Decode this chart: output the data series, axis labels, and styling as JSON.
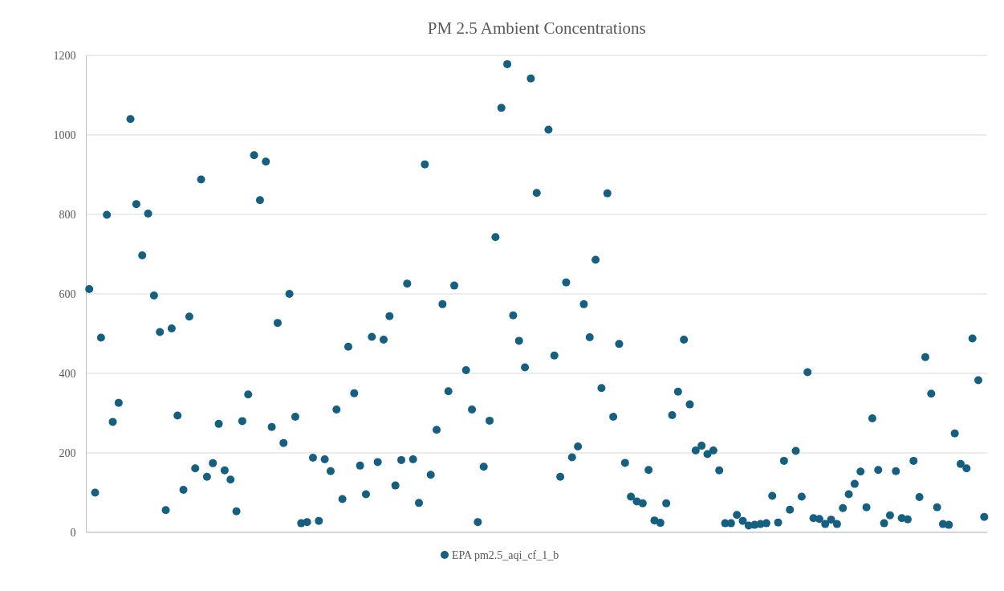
{
  "chart_data": {
    "type": "scatter",
    "title": "PM 2.5 Ambient Concentrations",
    "categories": [
      null,
      null,
      null,
      null,
      null,
      null,
      null,
      null,
      null,
      null,
      null,
      null,
      null,
      null,
      null,
      null,
      null,
      null,
      null,
      null,
      null,
      null,
      null,
      null,
      null,
      null,
      null,
      null,
      null,
      null,
      null,
      null,
      null,
      null,
      null,
      null,
      null,
      null,
      null,
      null,
      null,
      null,
      null,
      null,
      null,
      null,
      null,
      null,
      null,
      null,
      null,
      null,
      null,
      null,
      null,
      null,
      null,
      null,
      null,
      null,
      null,
      null,
      null,
      null,
      null,
      null,
      null,
      null,
      null,
      null,
      null,
      null,
      null,
      null,
      null,
      null,
      null,
      null,
      null,
      null,
      null,
      null,
      null,
      null,
      null,
      null,
      null,
      null,
      null,
      null,
      null,
      null,
      null,
      null,
      null,
      null,
      null,
      null,
      null,
      null,
      null,
      null,
      null,
      null,
      null,
      null,
      null,
      null,
      null,
      null,
      null,
      null,
      null,
      null,
      null,
      null,
      null,
      null,
      null,
      null,
      null,
      null,
      null,
      null,
      null,
      null,
      null,
      null,
      null,
      null,
      null,
      null,
      null,
      null,
      null,
      null,
      null,
      null,
      null,
      null,
      null,
      null,
      null,
      null,
      null,
      null,
      null,
      null,
      null,
      null,
      null,
      null,
      null
    ],
    "series": [
      {
        "name": "EPA pm2.5_aqi_cf_1_b",
        "color": "#155f80",
        "values": [
          612,
          100,
          490,
          799,
          278,
          326,
          null,
          1040,
          826,
          697,
          802,
          596,
          504,
          56,
          513,
          294,
          107,
          543,
          161,
          888,
          140,
          174,
          273,
          156,
          133,
          53,
          280,
          347,
          949,
          836,
          933,
          265,
          527,
          225,
          600,
          291,
          23,
          26,
          188,
          29,
          184,
          154,
          309,
          84,
          467,
          350,
          168,
          96,
          492,
          177,
          485,
          544,
          118,
          182,
          626,
          184,
          74,
          926,
          145,
          258,
          574,
          355,
          621,
          null,
          408,
          309,
          26,
          165,
          281,
          743,
          1068,
          1178,
          546,
          482,
          415,
          1142,
          854,
          null,
          1013,
          445,
          140,
          629,
          189,
          216,
          574,
          491,
          686,
          363,
          853,
          291,
          474,
          175,
          90,
          78,
          73,
          157,
          30,
          24,
          73,
          295,
          354,
          485,
          322,
          206,
          218,
          197,
          206,
          156,
          23,
          23,
          44,
          29,
          17,
          19,
          21,
          23,
          92,
          25,
          180,
          57,
          205,
          90,
          403,
          36,
          34,
          21,
          32,
          21,
          61,
          96,
          122,
          153,
          63,
          287,
          157,
          23,
          43,
          154,
          36,
          33,
          180,
          89,
          441,
          349,
          63,
          21,
          19,
          249,
          172,
          161,
          488,
          383,
          39
        ]
      }
    ],
    "ylim": [
      0,
      1200
    ],
    "yticks": [
      0,
      200,
      400,
      600,
      800,
      1000,
      1200
    ],
    "grid": "y",
    "legend": "bottom",
    "marker": "circle"
  }
}
